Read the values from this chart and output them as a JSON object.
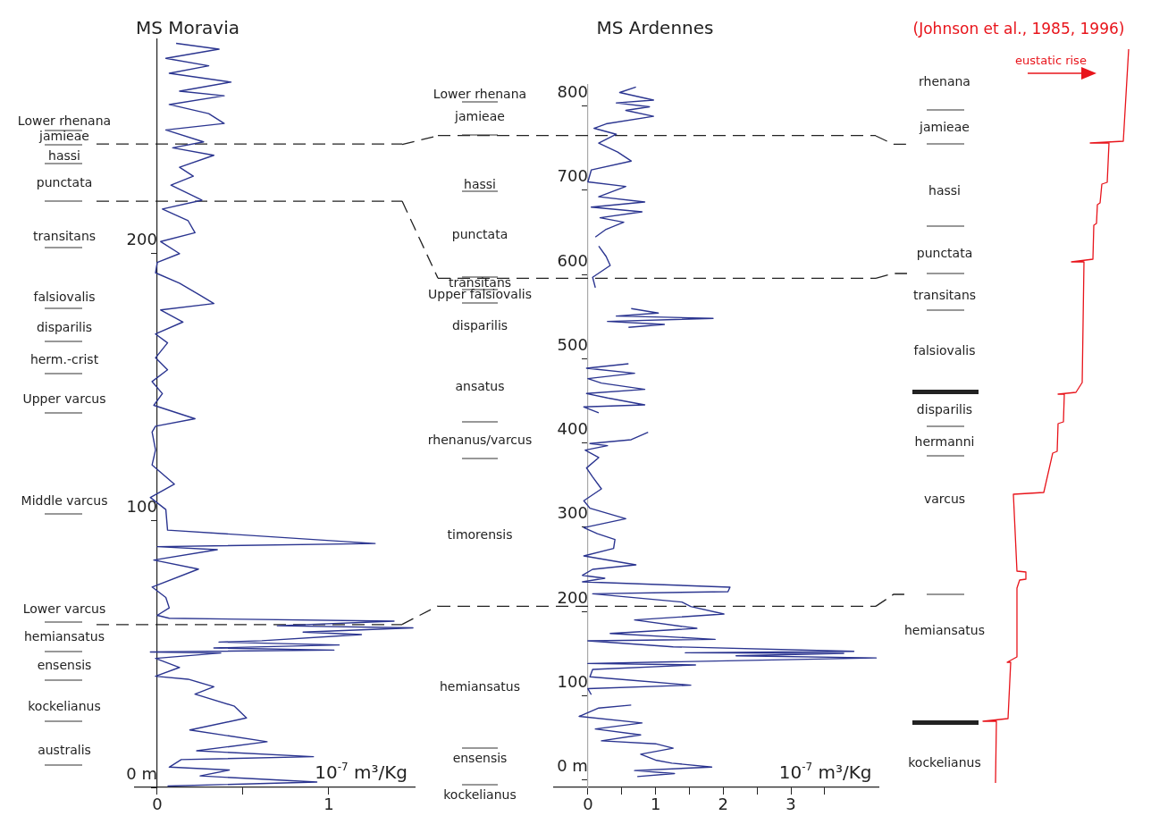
{
  "chart_data": [
    {
      "type": "line",
      "orientation": "horizontal",
      "title": "MS Moravia",
      "xlabel": "10$^{-7}$ m³/Kg",
      "xlim": [
        -0.13,
        1.5
      ],
      "xticks": [
        0,
        {
          "value": 0.5,
          "label": null
        },
        1
      ],
      "ylim": [
        0,
        280
      ],
      "yticks": [
        {
          "value": 0,
          "label": "0 m"
        },
        100,
        200
      ],
      "series": [
        {
          "color": "#2b3590",
          "x": [
            278.5,
            276.3,
            272.9,
            270.1,
            267.3,
            264,
            260.6,
            258.9,
            255.6,
            252.2,
            248.5,
            246.1,
            241.6,
            239.4,
            236.6,
            232.1,
            228.8,
            225.4,
            219.8,
            216.5,
            212.1,
            207.6,
            204.3,
            199.8,
            196.5,
            192.6,
            188.7,
            184.2,
            181.1,
            178.7,
            174.2,
            169.7,
            166.4,
            160.8,
            156.3,
            151.9,
            147.4,
            143,
            138,
            135.2,
            133,
            126.3,
            120.7,
            113.5,
            108.5,
            104,
            96.3,
            91.3,
            90.1,
            89,
            85.1,
            81.7,
            75,
            71.1,
            67.2,
            64.4,
            63.3,
            62.2,
            60.5,
            59.7,
            58.1,
            57.2,
            54.9,
            54.4,
            53.3,
            52.2,
            51.4,
            50.7,
            50.3,
            48.3,
            44.9,
            41.6,
            40.5,
            37.7,
            34.9,
            30.4,
            26,
            21.5,
            17.1,
            13.7,
            11.5,
            10.4,
            7.6,
            6.5,
            4.3,
            2,
            0.5
          ],
          "values": [
            0.11,
            0.36,
            0.05,
            0.3,
            0.07,
            0.43,
            0.13,
            0.39,
            0.07,
            0.3,
            0.39,
            0.05,
            0.27,
            0.09,
            0.33,
            0.13,
            0.21,
            0.08,
            0.26,
            0.03,
            0.18,
            0.22,
            0.02,
            0.13,
            0,
            -0.01,
            0.13,
            0.25,
            0.33,
            0.02,
            0.15,
            -0.01,
            0.06,
            -0.01,
            0.06,
            -0.03,
            0.03,
            -0.02,
            0.22,
            -0.01,
            -0.03,
            -0.01,
            -0.03,
            0.1,
            -0.04,
            0.05,
            0.06,
            1.27,
            0,
            0.35,
            -0.02,
            0.24,
            -0.03,
            0.05,
            0.07,
            0,
            0.07,
            1.38,
            0.7,
            1.49,
            0.85,
            1.19,
            0.61,
            0.36,
            1.06,
            0.33,
            1.03,
            -0.04,
            0.37,
            -0.01,
            0.13,
            -0.01,
            0.18,
            0.33,
            0.22,
            0.45,
            0.52,
            0.19,
            0.64,
            0.23,
            0.91,
            0.14,
            0.07,
            0.42,
            0.25,
            0.93,
            0.06
          ]
        }
      ],
      "ref_lines": [
        {
          "axis": "y",
          "value": 240.8,
          "line_style": "dashed"
        },
        {
          "axis": "y",
          "value": 219.4,
          "line_style": "dashed"
        },
        {
          "axis": "y",
          "value": 60.9,
          "line_style": "dashed"
        }
      ],
      "annotations": [
        "Lower rhenana",
        "jamieae",
        "hassi",
        "punctata",
        "transitans",
        "falsiovalis",
        "disparilis",
        "herm.-crist",
        "Upper varcus",
        "Middle varcus",
        "Lower varcus",
        "hemiansatus",
        "ensensis",
        "kockelianus",
        "australis"
      ]
    },
    {
      "type": "line",
      "orientation": "horizontal",
      "title": "MS Ardennes",
      "xlabel": "10$^{-7}$ m³/Kg",
      "xlim": [
        -0.5,
        4.3
      ],
      "xticks": [
        0,
        {
          "value": 0.5,
          "label": null
        },
        1,
        {
          "value": 1.5,
          "label": null
        },
        2,
        {
          "value": 2.5,
          "label": null
        },
        3,
        {
          "value": 3.5,
          "label": null
        }
      ],
      "ylim": [
        -9,
        825
      ],
      "yticks": [
        {
          "value": 0,
          "label": "0 m"
        },
        100,
        200,
        300,
        400,
        500,
        600,
        700,
        800
      ],
      "series": [
        {
          "color": "#2b3590",
          "x": [
            822.4,
            816,
            807,
            803.6,
            799,
            794.8,
            787.7,
            778.8,
            773.5,
            766.4,
            755.9,
            745.2,
            734.6,
            724,
            709.9,
            704.4,
            692.2,
            686,
            679.9,
            674.4,
            667.3,
            662,
            653.6,
            644.4,
            640,
            633.7,
            621.3,
            610.7,
            596.6,
            584.3,
            570,
            559.4,
            554.1,
            550.6,
            547.8,
            544.2,
            540.7,
            537.2,
            515,
            494,
            488.7,
            482.7,
            476.3,
            471,
            463.6,
            458.6,
            453.4,
            445.2,
            442.7,
            435.7,
            425,
            412.6,
            403.8,
            399.2,
            396.7,
            391.4,
            382.6,
            370.2,
            359.6,
            345.4,
            331.3,
            322.4,
            310,
            299.4,
            292.3,
            285.3,
            274.7,
            265.8,
            255.2,
            249.9,
            242.8,
            239.3,
            235.1,
            228.7,
            223.4,
            220.9,
            211,
            205.7,
            196.8,
            189.8,
            179.8,
            173.8,
            166.7,
            165,
            157.9,
            152.6,
            150.8,
            150.1,
            147.3,
            144.7,
            138.1,
            136.4,
            131.1,
            122.3,
            112.4,
            108.2,
            101.1,
            95,
            88.7,
            85.2,
            75.3,
            67.5,
            60.4,
            53.4,
            46.3,
            42.8,
            37.5,
            30.4,
            23.4,
            19.8,
            15.2,
            11,
            7.5,
            3.9
          ],
          "values": [
            0.71,
            0.47,
            0.97,
            0.42,
            0.91,
            0.56,
            0.97,
            0.27,
            0.09,
            0.42,
            0.16,
            0.44,
            0.64,
            0.05,
            0,
            0.56,
            0.16,
            0.84,
            0.05,
            0.8,
            0.18,
            0.53,
            0.27,
            0.11,
            null,
            0.16,
            0.27,
            0.33,
            0.07,
            0.11,
            null,
            0.64,
            1.04,
            0.42,
            1.85,
            0.29,
            1.13,
            0.6,
            null,
            0.6,
            -0.02,
            0.69,
            0,
            0.2,
            0.84,
            -0.02,
            0.29,
            0.84,
            -0.06,
            0.16,
            null,
            0.89,
            0.64,
            0.03,
            0.29,
            -0.04,
            0.16,
            -0.02,
            0.07,
            0.2,
            -0.06,
            0.03,
            0.56,
            -0.06,
            0.14,
            0.4,
            0.38,
            -0.06,
            0.71,
            0.07,
            -0.08,
            0.25,
            -0.08,
            2.1,
            2.07,
            0.07,
            1.39,
            1.52,
            2.01,
            0.69,
            1.61,
            0.33,
            1.88,
            0,
            1.26,
            3.93,
            1.44,
            3.78,
            2.19,
            4.26,
            0,
            1.59,
            0.07,
            0.03,
            1.52,
            0,
            0.05,
            null,
            0.64,
            0.16,
            -0.13,
            0.8,
            0.11,
            0.78,
            0.2,
            1,
            1.26,
            0.78,
            1,
            1.24,
            1.83,
            0.69,
            1.28,
            0.73
          ]
        }
      ],
      "ref_lines": [
        {
          "axis": "y",
          "value": 765,
          "line_style": "dashed"
        },
        {
          "axis": "y",
          "value": 595.5,
          "line_style": "dashed"
        },
        {
          "axis": "y",
          "value": 206,
          "line_style": "dashed"
        }
      ],
      "annotations": [
        "Lower rhenana",
        "jamieae",
        "hassi",
        "punctata",
        "transitans",
        "Upper falsiovalis",
        "disparilis",
        "ansatus",
        "rhenanus/varcus",
        "timorensis",
        "hemiansatus",
        "ensensis",
        "kockelianus"
      ]
    },
    {
      "type": "other",
      "title": "(Johnson et al., 1985, 1996)",
      "annotations": [
        "eustatic rise",
        "rhenana",
        "jamieae",
        "hassi",
        "punctata",
        "transitans",
        "falsiovalis",
        "disparilis",
        "hermanni",
        "varcus",
        "hemiansatus",
        "kockelianus"
      ]
    }
  ]
}
